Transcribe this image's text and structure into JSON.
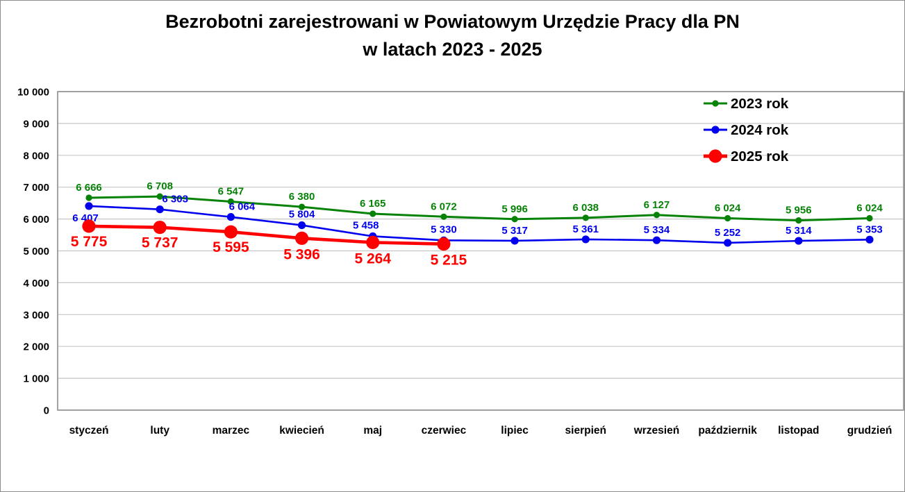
{
  "title": {
    "line1": "Bezrobotni zarejestrowani w Powiatowym Urzędzie Pracy dla PN",
    "line2": "w latach 2023 - 2025"
  },
  "chart_data": {
    "type": "line",
    "categories": [
      "styczeń",
      "luty",
      "marzec",
      "kwiecień",
      "maj",
      "czerwiec",
      "lipiec",
      "sierpień",
      "wrzesień",
      "październik",
      "listopad",
      "grudzień"
    ],
    "series": [
      {
        "name": "2023 rok",
        "color": "#068206",
        "values": [
          6666,
          6708,
          6547,
          6380,
          6165,
          6072,
          5996,
          6038,
          6127,
          6024,
          5956,
          6024
        ]
      },
      {
        "name": "2024 rok",
        "color": "#0000ee",
        "values": [
          6407,
          6303,
          6064,
          5804,
          5458,
          5330,
          5317,
          5361,
          5334,
          5252,
          5314,
          5353
        ]
      },
      {
        "name": "2025 rok",
        "color": "#fe0000",
        "values": [
          5775,
          5737,
          5595,
          5396,
          5264,
          5215
        ]
      }
    ],
    "ylim": [
      0,
      10000
    ],
    "ytick_step": 1000,
    "grid": "horizontal",
    "legend_position": "top-right",
    "number_format": "space-thousands",
    "gridline_color": "#c6c6c6",
    "border_color": "#8c8c8c",
    "axis_text_color": "#000000"
  }
}
